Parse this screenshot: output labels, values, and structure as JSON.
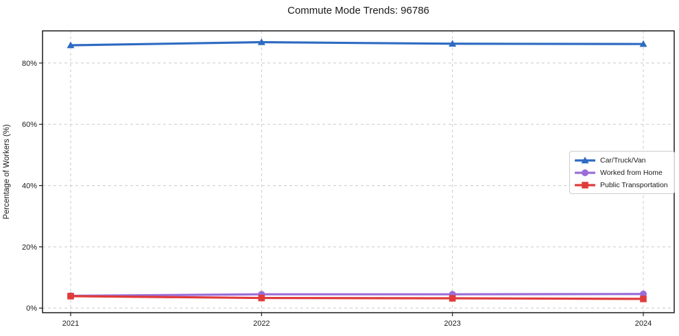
{
  "figure": {
    "title": "Commute Mode Trends: 96786"
  },
  "chart_data": {
    "type": "line",
    "title": "Commute Mode Trends: 96786",
    "xlabel": "",
    "ylabel": "Percentage of Workers (%)",
    "x": [
      "2021",
      "2022",
      "2023",
      "2024"
    ],
    "series": [
      {
        "name": "Car/Truck/Van",
        "marker": "triangle",
        "color": "#2e6bc2",
        "values": [
          85.8,
          86.8,
          86.3,
          86.2
        ]
      },
      {
        "name": "Worked from Home",
        "marker": "circle",
        "color": "#9a6dd7",
        "values": [
          4.0,
          4.5,
          4.5,
          4.6
        ]
      },
      {
        "name": "Public Transportation",
        "marker": "square",
        "color": "#e03b3b",
        "values": [
          3.9,
          3.3,
          3.2,
          3.0
        ]
      }
    ],
    "yticks": [
      0,
      20,
      40,
      60,
      80
    ],
    "ytick_labels": [
      "0%",
      "20%",
      "40%",
      "60%",
      "80%"
    ],
    "ylim": [
      -1.5,
      90.5
    ],
    "grid": true,
    "grid_style": "dashed",
    "legend_position": "center-right",
    "axis_color": "#1a1a1a",
    "grid_color": "#c9c9c9"
  }
}
